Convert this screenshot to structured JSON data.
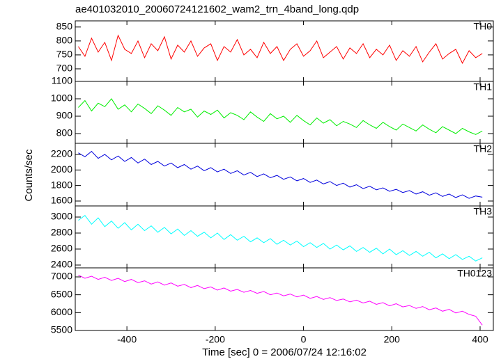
{
  "chart_data": {
    "type": "line",
    "title": "ae401032010_20060724121602_wam2_trn_4band_long.qdp",
    "xlabel": "Time [sec] 0 = 2006/07/24 12:16:02",
    "ylabel": "Counts/sec",
    "xlim": [
      -517,
      430
    ],
    "xticks": [
      -400,
      -200,
      0,
      200,
      400
    ],
    "x": [
      -510,
      -495,
      -480,
      -465,
      -450,
      -435,
      -420,
      -405,
      -390,
      -375,
      -360,
      -345,
      -330,
      -315,
      -300,
      -285,
      -270,
      -255,
      -240,
      -225,
      -210,
      -195,
      -180,
      -165,
      -150,
      -135,
      -120,
      -105,
      -90,
      -75,
      -60,
      -45,
      -30,
      -15,
      0,
      15,
      30,
      45,
      60,
      75,
      90,
      105,
      120,
      135,
      150,
      165,
      180,
      195,
      210,
      225,
      240,
      255,
      270,
      285,
      300,
      315,
      330,
      345,
      360,
      375,
      390,
      405
    ],
    "panels": [
      {
        "name": "TH0",
        "color": "#ff0000",
        "ylim": [
          655,
          872
        ],
        "yticks": [
          700,
          750,
          800,
          850
        ],
        "values": [
          780,
          745,
          810,
          760,
          795,
          730,
          820,
          770,
          755,
          800,
          740,
          790,
          765,
          815,
          735,
          785,
          760,
          800,
          745,
          775,
          790,
          730,
          780,
          760,
          805,
          750,
          770,
          740,
          795,
          755,
          780,
          730,
          770,
          790,
          745,
          765,
          800,
          740,
          760,
          780,
          735,
          775,
          755,
          790,
          740,
          770,
          750,
          785,
          730,
          765,
          745,
          780,
          725,
          760,
          790,
          735,
          755,
          770,
          720,
          765,
          740,
          755
        ]
      },
      {
        "name": "TH1",
        "color": "#00ee00",
        "ylim": [
          744,
          1100
        ],
        "yticks": [
          800,
          900,
          1000,
          1100
        ],
        "values": [
          950,
          990,
          930,
          975,
          955,
          1000,
          940,
          965,
          925,
          970,
          945,
          915,
          960,
          935,
          905,
          950,
          925,
          940,
          895,
          930,
          910,
          935,
          890,
          920,
          905,
          880,
          925,
          895,
          870,
          915,
          885,
          900,
          865,
          905,
          875,
          850,
          890,
          860,
          880,
          845,
          870,
          855,
          835,
          875,
          850,
          830,
          865,
          840,
          820,
          855,
          835,
          815,
          850,
          825,
          805,
          840,
          820,
          800,
          830,
          810,
          795,
          815
        ]
      },
      {
        "name": "TH2",
        "color": "#0000dd",
        "ylim": [
          1537,
          2343
        ],
        "yticks": [
          1600,
          1800,
          2000,
          2200
        ],
        "values": [
          2220,
          2170,
          2240,
          2150,
          2200,
          2130,
          2180,
          2110,
          2160,
          2090,
          2140,
          2070,
          2110,
          2050,
          2090,
          2030,
          2070,
          2010,
          2050,
          1990,
          2030,
          1975,
          2010,
          1955,
          1990,
          1935,
          1970,
          1915,
          1950,
          1900,
          1930,
          1880,
          1910,
          1860,
          1890,
          1840,
          1870,
          1820,
          1850,
          1800,
          1830,
          1780,
          1810,
          1760,
          1790,
          1745,
          1770,
          1725,
          1750,
          1710,
          1735,
          1690,
          1720,
          1675,
          1705,
          1660,
          1690,
          1645,
          1680,
          1635,
          1665,
          1650
        ]
      },
      {
        "name": "TH3",
        "color": "#00ffff",
        "ylim": [
          2365,
          3139
        ],
        "yticks": [
          2400,
          2600,
          2800,
          3000
        ],
        "values": [
          2960,
          3020,
          2910,
          2990,
          2880,
          2950,
          2860,
          2930,
          2840,
          2910,
          2830,
          2890,
          2810,
          2870,
          2790,
          2850,
          2770,
          2830,
          2760,
          2810,
          2740,
          2800,
          2720,
          2780,
          2710,
          2760,
          2690,
          2740,
          2680,
          2730,
          2660,
          2710,
          2650,
          2700,
          2630,
          2680,
          2620,
          2670,
          2600,
          2650,
          2590,
          2640,
          2570,
          2620,
          2560,
          2610,
          2540,
          2600,
          2530,
          2580,
          2520,
          2570,
          2510,
          2560,
          2490,
          2540,
          2480,
          2530,
          2470,
          2510,
          2450,
          2490
        ]
      },
      {
        "name": "TH0123",
        "color": "#ff00ff",
        "ylim": [
          5500,
          7253
        ],
        "yticks": [
          5500,
          6000,
          6500,
          7000
        ],
        "values": [
          7050,
          6960,
          7020,
          6930,
          6990,
          6900,
          6960,
          6870,
          6930,
          6840,
          6890,
          6800,
          6860,
          6770,
          6830,
          6740,
          6790,
          6700,
          6760,
          6670,
          6720,
          6630,
          6690,
          6600,
          6650,
          6570,
          6620,
          6540,
          6590,
          6500,
          6550,
          6470,
          6520,
          6440,
          6490,
          6400,
          6450,
          6370,
          6420,
          6340,
          6380,
          6300,
          6350,
          6270,
          6320,
          6230,
          6280,
          6190,
          6250,
          6160,
          6200,
          6120,
          6170,
          6080,
          6130,
          6040,
          6090,
          5990,
          6040,
          5950,
          5900,
          5650
        ]
      }
    ]
  }
}
